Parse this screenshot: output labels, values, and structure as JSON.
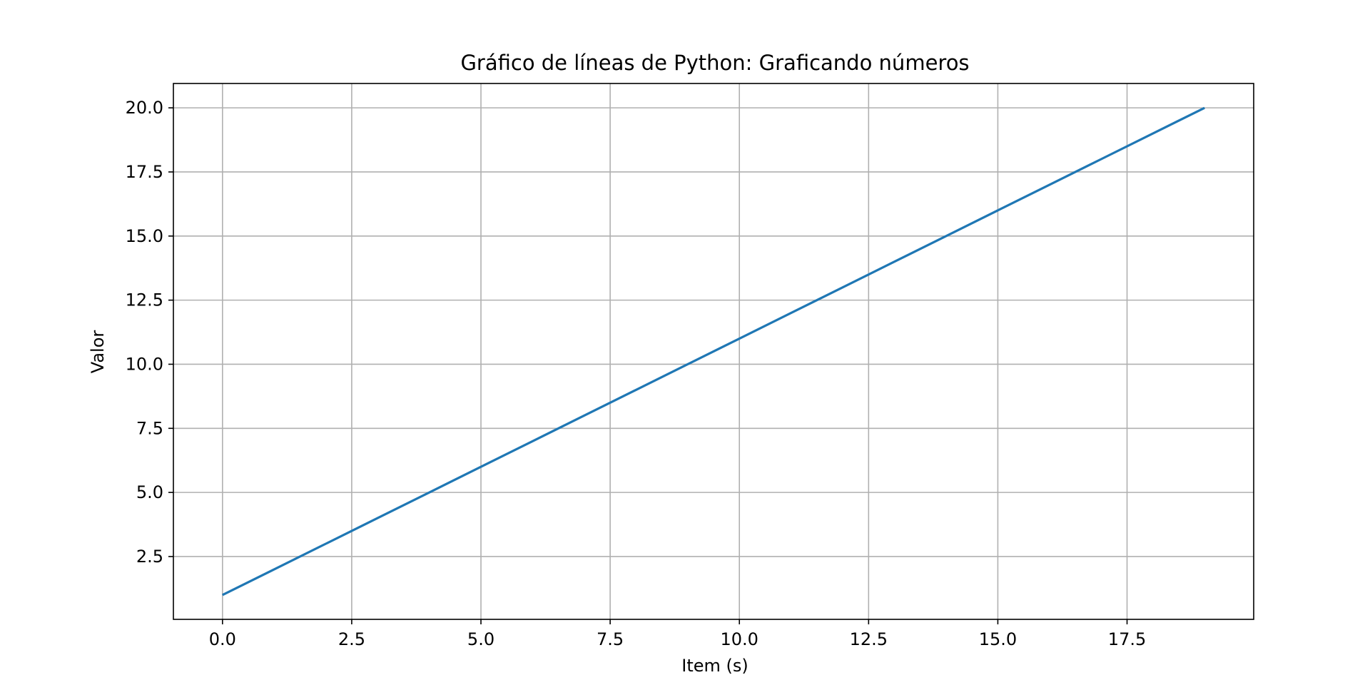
{
  "chart_data": {
    "type": "line",
    "title": "Gráfico de líneas de Python: Graficando números",
    "xlabel": "Item (s)",
    "ylabel": "Valor",
    "xlim": [
      -0.95,
      19.95
    ],
    "ylim": [
      0.05,
      20.95
    ],
    "x_ticks": [
      0.0,
      2.5,
      5.0,
      7.5,
      10.0,
      12.5,
      15.0,
      17.5
    ],
    "x_tick_labels": [
      "0.0",
      "2.5",
      "5.0",
      "7.5",
      "10.0",
      "12.5",
      "15.0",
      "17.5"
    ],
    "y_ticks": [
      2.5,
      5.0,
      7.5,
      10.0,
      12.5,
      15.0,
      17.5,
      20.0
    ],
    "y_tick_labels": [
      "2.5",
      "5.0",
      "7.5",
      "10.0",
      "12.5",
      "15.0",
      "17.5",
      "20.0"
    ],
    "grid": true,
    "legend": "none",
    "series": [
      {
        "color": "#1f77b4",
        "x": [
          0,
          1,
          2,
          3,
          4,
          5,
          6,
          7,
          8,
          9,
          10,
          11,
          12,
          13,
          14,
          15,
          16,
          17,
          18,
          19
        ],
        "y": [
          1,
          2,
          3,
          4,
          5,
          6,
          7,
          8,
          9,
          10,
          11,
          12,
          13,
          14,
          15,
          16,
          17,
          18,
          19,
          20
        ]
      }
    ]
  },
  "colors": {
    "line": "#1f77b4",
    "grid": "#b0b0b0",
    "axes": "#000000",
    "background": "#ffffff"
  }
}
